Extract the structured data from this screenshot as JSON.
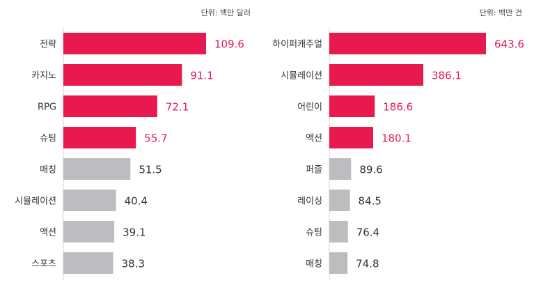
{
  "colors": {
    "highlight": "#e8194f",
    "normal": "#bdbcbe",
    "text_dark": "#333333"
  },
  "chart_data": [
    {
      "type": "bar",
      "orientation": "horizontal",
      "unit_label": "단위: 백만 달러",
      "categories": [
        "전략",
        "카지노",
        "RPG",
        "슈팅",
        "매칭",
        "시뮬레이션",
        "액션",
        "스포츠"
      ],
      "values": [
        109.6,
        91.1,
        72.1,
        55.7,
        51.5,
        40.4,
        39.1,
        38.3
      ],
      "value_labels": [
        "109.6",
        "91.1",
        "72.1",
        "55.7",
        "51.5",
        "40.4",
        "39.1",
        "38.3"
      ],
      "highlighted_count": 4,
      "xlim": [
        0,
        109.6
      ],
      "grid": false,
      "legend": "none"
    },
    {
      "type": "bar",
      "orientation": "horizontal",
      "unit_label": "단위: 백만 건",
      "categories": [
        "하이퍼캐주얼",
        "시뮬레이션",
        "어린이",
        "액션",
        "퍼즐",
        "레이싱",
        "슈팅",
        "매칭"
      ],
      "values": [
        643.6,
        386.1,
        186.6,
        180.1,
        89.6,
        84.5,
        76.4,
        74.8
      ],
      "value_labels": [
        "643.6",
        "386.1",
        "186.6",
        "180.1",
        "89.6",
        "84.5",
        "76.4",
        "74.8"
      ],
      "highlighted_count": 4,
      "xlim": [
        0,
        643.6
      ],
      "grid": false,
      "legend": "none"
    }
  ]
}
